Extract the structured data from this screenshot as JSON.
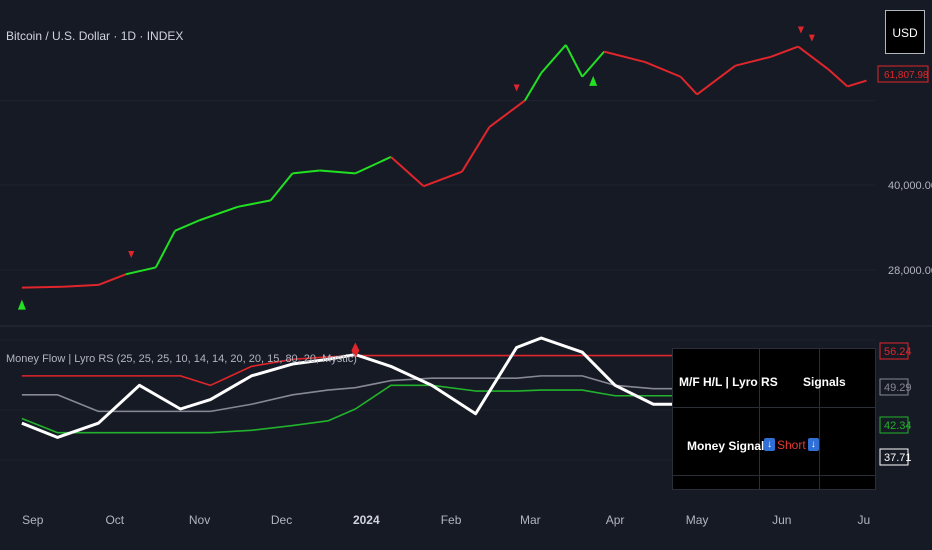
{
  "header": {
    "symbol_title": "Bitcoin / U.S. Dollar · 1D · INDEX",
    "currency_button": "USD"
  },
  "price_axis": {
    "labels": [
      "40,000.00",
      "28,000.00"
    ],
    "last_price_label": "61,807.98"
  },
  "indicator": {
    "title": "Money Flow | Lyro RS (25, 25, 25, 10, 14, 14, 20, 20, 15, 80, 20, Mystic)",
    "value_labels": [
      {
        "value": "56.24",
        "color": "#e0262b"
      },
      {
        "value": "49.29",
        "color": "#868993"
      },
      {
        "value": "42.34",
        "color": "#22b22b"
      },
      {
        "value": "37.71",
        "color": "#ffffff"
      }
    ]
  },
  "signal_table": {
    "header_left": "M/F H/L | Lyro RS",
    "header_right": "Signals",
    "row_label": "Money Signal:",
    "signal_value": "Short",
    "signal_icon": "arrow-down-icon"
  },
  "time_axis": [
    "Sep",
    "Oct",
    "Nov",
    "Dec",
    "2024",
    "Feb",
    "Mar",
    "Apr",
    "May",
    "Jun",
    "Ju"
  ],
  "colors": {
    "bull": "#22e022",
    "bear": "#e0262b",
    "background": "#161a25",
    "mid_line": "#868993",
    "oscillator": "#ffffff"
  },
  "chart_data": [
    {
      "type": "line",
      "description_kind": "candlestick price (close), colored by trend",
      "x": [
        "2023-08-28",
        "2023-09-12",
        "2023-09-25",
        "2023-10-05",
        "2023-10-16",
        "2023-10-23",
        "2023-11-01",
        "2023-11-15",
        "2023-11-27",
        "2023-12-05",
        "2023-12-15",
        "2023-12-28",
        "2024-01-10",
        "2024-01-22",
        "2024-02-05",
        "2024-02-15",
        "2024-02-28",
        "2024-03-05",
        "2024-03-14",
        "2024-03-20",
        "2024-03-28",
        "2024-04-12",
        "2024-04-25",
        "2024-05-01",
        "2024-05-15",
        "2024-05-28",
        "2024-06-07",
        "2024-06-18",
        "2024-06-25",
        "2024-07-02"
      ],
      "series": [
        {
          "values": [
            26000,
            26100,
            26300,
            27500,
            28300,
            33000,
            34500,
            36500,
            37500,
            42000,
            42500,
            42000,
            45000,
            39800,
            42300,
            51000,
            57000,
            64000,
            72000,
            63000,
            70000,
            67000,
            63000,
            58500,
            66000,
            68500,
            71500,
            65000,
            60500,
            62000
          ]
        }
      ],
      "trend_colors": [
        "bear",
        "bear",
        "bear",
        "bull",
        "bull",
        "bull",
        "bull",
        "bull",
        "bull",
        "bull",
        "bull",
        "bull",
        "bear",
        "bear",
        "bear",
        "bear",
        "bull",
        "bull",
        "bull",
        "bull",
        "bear",
        "bear",
        "bear",
        "bear",
        "bear",
        "bear",
        "bear",
        "bear",
        "bear",
        "bear"
      ],
      "signals": [
        {
          "x": "2023-08-28",
          "kind": "buy"
        },
        {
          "x": "2023-10-07",
          "kind": "sell"
        },
        {
          "x": "2024-02-25",
          "kind": "sell"
        },
        {
          "x": "2024-03-24",
          "kind": "buy"
        },
        {
          "x": "2024-06-08",
          "kind": "sell"
        },
        {
          "x": "2024-06-12",
          "kind": "sell"
        }
      ],
      "yticks": [
        40000,
        28000
      ]
    },
    {
      "type": "line",
      "x": [
        "2023-08-28",
        "2023-09-10",
        "2023-09-25",
        "2023-10-10",
        "2023-10-25",
        "2023-11-05",
        "2023-11-20",
        "2023-12-05",
        "2023-12-18",
        "2023-12-28",
        "2024-01-10",
        "2024-01-25",
        "2024-02-10",
        "2024-02-25",
        "2024-03-05",
        "2024-03-20",
        "2024-04-01",
        "2024-04-15",
        "2024-05-01",
        "2024-05-20",
        "2024-06-10",
        "2024-07-02"
      ],
      "series": [
        {
          "name": "upper",
          "values": [
            52,
            52,
            52,
            52,
            52,
            50,
            54,
            55.5,
            56,
            56.3,
            56.3,
            56.3,
            56.3,
            56.3,
            56.3,
            56.3,
            56.3,
            56.3,
            56.3,
            56.3,
            56.3,
            56.2
          ]
        },
        {
          "name": "mid",
          "values": [
            48,
            48,
            44.5,
            44.5,
            44.5,
            44.5,
            46,
            48,
            49,
            49.5,
            51,
            51.5,
            51.5,
            51.5,
            52,
            52,
            50,
            49.3,
            49.3,
            49.3,
            49.3,
            49.3
          ]
        },
        {
          "name": "lower",
          "values": [
            43,
            40,
            40,
            40,
            40,
            40,
            40.5,
            41.5,
            42.5,
            45,
            50,
            50,
            48.8,
            48.8,
            49,
            49,
            47.8,
            47.8,
            47.8,
            47.8,
            47.8,
            42.3
          ]
        },
        {
          "name": "money flow",
          "values": [
            42,
            39,
            42,
            50,
            45,
            47,
            52,
            54.5,
            55.5,
            56.5,
            54,
            50,
            44,
            58,
            60,
            57,
            50,
            46,
            46,
            46,
            46,
            37.7
          ]
        }
      ],
      "signals": [
        {
          "x": "2023-12-28",
          "kind": "sell"
        }
      ]
    }
  ]
}
